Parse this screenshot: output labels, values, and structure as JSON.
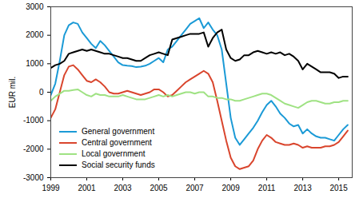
{
  "chart_data": {
    "type": "line",
    "y_label": "EUR mil.",
    "x": [
      1999,
      1999.25,
      1999.5,
      1999.75,
      2000,
      2000.25,
      2000.5,
      2000.75,
      2001,
      2001.25,
      2001.5,
      2001.75,
      2002,
      2002.25,
      2002.5,
      2002.75,
      2003,
      2003.25,
      2003.5,
      2003.75,
      2004,
      2004.25,
      2004.5,
      2004.75,
      2005,
      2005.25,
      2005.5,
      2005.75,
      2006,
      2006.25,
      2006.5,
      2006.75,
      2007,
      2007.25,
      2007.5,
      2007.75,
      2008,
      2008.25,
      2008.5,
      2008.75,
      2009,
      2009.25,
      2009.5,
      2009.75,
      2010,
      2010.25,
      2010.5,
      2010.75,
      2011,
      2011.25,
      2011.5,
      2011.75,
      2012,
      2012.25,
      2012.5,
      2012.75,
      2013,
      2013.25,
      2013.5,
      2013.75,
      2014,
      2014.25,
      2014.5,
      2014.75,
      2015,
      2015.25,
      2015.5
    ],
    "series": [
      {
        "name": "General government",
        "color": "#1b9ad6",
        "values": [
          -100,
          300,
          1100,
          2000,
          2350,
          2450,
          2400,
          2100,
          1900,
          1700,
          1550,
          1800,
          1650,
          1450,
          1250,
          1050,
          950,
          930,
          920,
          880,
          900,
          930,
          1000,
          1100,
          1200,
          1050,
          1500,
          1600,
          1800,
          2000,
          2200,
          2400,
          2500,
          2600,
          2250,
          2450,
          2200,
          2000,
          1500,
          300,
          -900,
          -1600,
          -1850,
          -1650,
          -1450,
          -1250,
          -1000,
          -700,
          -450,
          -300,
          -500,
          -750,
          -900,
          -1100,
          -1200,
          -1150,
          -1450,
          -1300,
          -1450,
          -1550,
          -1600,
          -1600,
          -1650,
          -1700,
          -1500,
          -1300,
          -1150
        ]
      },
      {
        "name": "Central government",
        "color": "#d9452d",
        "values": [
          -900,
          -600,
          0,
          600,
          900,
          950,
          800,
          600,
          400,
          350,
          450,
          350,
          200,
          0,
          -50,
          -50,
          0,
          50,
          0,
          -50,
          -100,
          -50,
          0,
          100,
          100,
          0,
          -150,
          -100,
          50,
          200,
          350,
          450,
          550,
          650,
          750,
          650,
          350,
          -300,
          -1000,
          -1700,
          -2300,
          -2600,
          -2700,
          -2650,
          -2600,
          -2400,
          -2000,
          -1700,
          -1500,
          -1600,
          -1750,
          -1800,
          -1850,
          -1850,
          -1800,
          -1850,
          -1950,
          -1900,
          -1950,
          -1950,
          -1950,
          -1900,
          -1900,
          -1850,
          -1750,
          -1550,
          -1350
        ]
      },
      {
        "name": "Local government",
        "color": "#9fe283",
        "values": [
          -300,
          -150,
          -50,
          50,
          50,
          80,
          100,
          0,
          -100,
          -150,
          -50,
          -100,
          -100,
          -150,
          -150,
          -150,
          -100,
          -150,
          -200,
          -250,
          -250,
          -250,
          -200,
          -150,
          -100,
          -150,
          -100,
          -150,
          -100,
          -50,
          0,
          0,
          -50,
          0,
          0,
          -150,
          -150,
          -200,
          -200,
          -250,
          -250,
          -300,
          -300,
          -250,
          -200,
          -150,
          -100,
          -50,
          -50,
          -100,
          -200,
          -300,
          -400,
          -450,
          -500,
          -550,
          -450,
          -350,
          -300,
          -300,
          -350,
          -400,
          -400,
          -350,
          -350,
          -300,
          -300
        ]
      },
      {
        "name": "Social security funds",
        "color": "#000000",
        "values": [
          850,
          950,
          1000,
          1100,
          1350,
          1400,
          1450,
          1500,
          1450,
          1500,
          1450,
          1400,
          1350,
          1350,
          1300,
          1250,
          1200,
          1200,
          1150,
          1100,
          1100,
          1200,
          1300,
          1350,
          1400,
          1350,
          1300,
          1850,
          1900,
          1950,
          2000,
          2050,
          2050,
          2050,
          2100,
          1600,
          1900,
          2100,
          2200,
          1500,
          1200,
          1100,
          1150,
          1300,
          1300,
          1400,
          1450,
          1400,
          1350,
          1400,
          1350,
          1400,
          1300,
          1350,
          1250,
          1100,
          800,
          1000,
          900,
          800,
          700,
          700,
          700,
          650,
          500,
          550,
          550
        ]
      }
    ],
    "xlim": [
      1999,
      2015.75
    ],
    "xticks": [
      1999,
      2001,
      2003,
      2005,
      2007,
      2009,
      2011,
      2013,
      2015
    ],
    "ylim": [
      -3000,
      3000
    ],
    "yticks": [
      -3000,
      -2000,
      -1000,
      0,
      1000,
      2000,
      3000
    ],
    "grid": false,
    "legend": "lower left"
  }
}
